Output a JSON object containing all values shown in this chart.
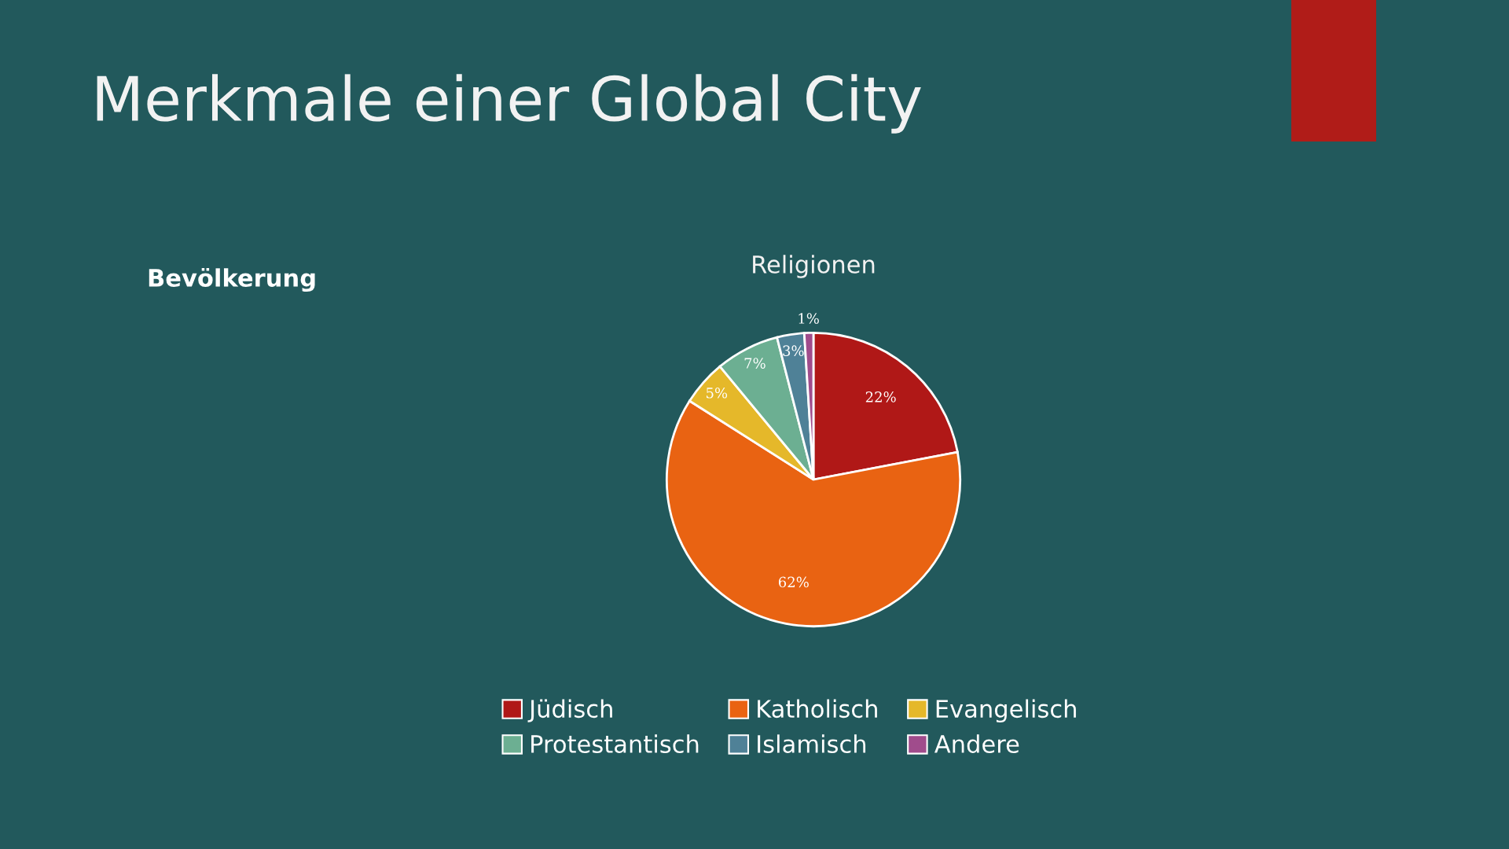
{
  "chart_data": {
    "type": "pie",
    "title": "Merkmale einer Global City",
    "subtitle": "Religionen",
    "annotations": [
      "Bevölkerung"
    ],
    "categories": [
      "Jüdisch",
      "Katholisch",
      "Evangelisch",
      "Protestantisch",
      "Islamisch",
      "Andere"
    ],
    "values": [
      22,
      62,
      5,
      7,
      3,
      1
    ],
    "colors": [
      "#b01817",
      "#e96312",
      "#e5b82a",
      "#6caf92",
      "#4f8197",
      "#a04c8c"
    ],
    "value_labels": [
      "22%",
      "62%",
      "5%",
      "7%",
      "3%",
      "1%"
    ],
    "legend": "bottom"
  }
}
